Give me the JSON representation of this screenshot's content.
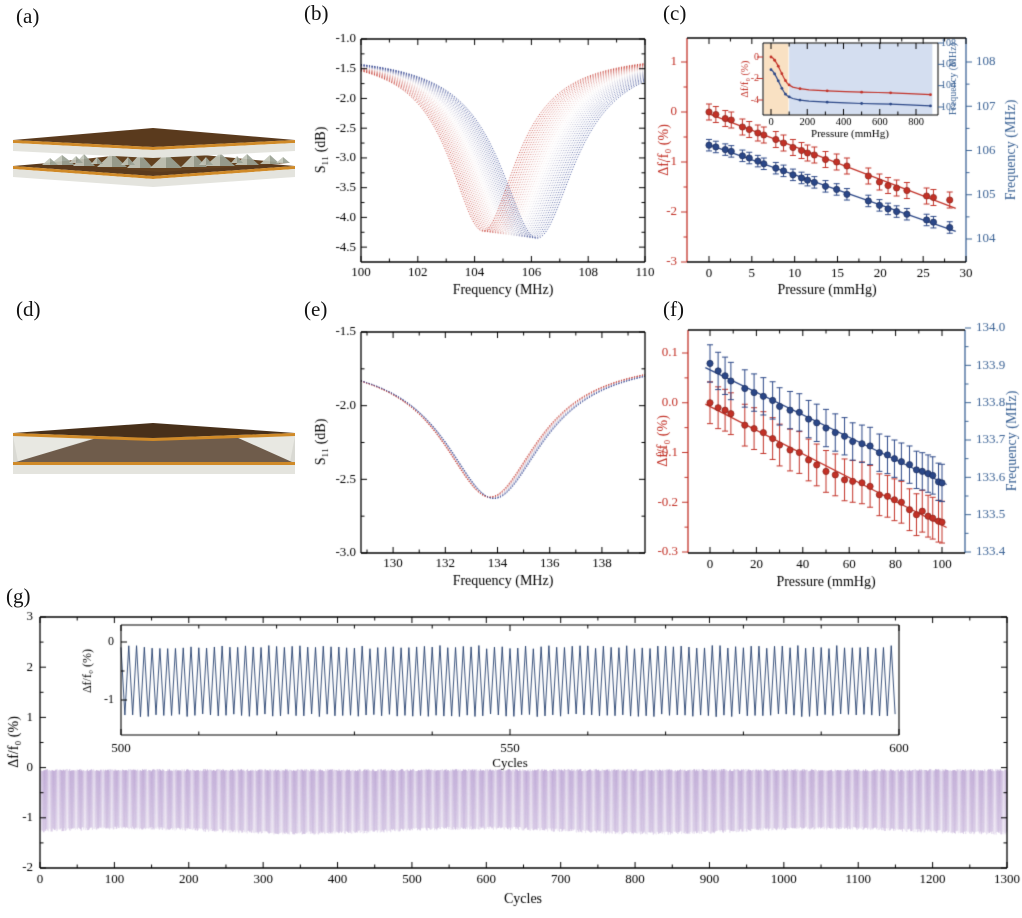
{
  "panels": {
    "a": {
      "label": "(a)",
      "description": "Sensor schematic with micro-pyramid dielectric layer between two electrode plates"
    },
    "b": {
      "label": "(b)"
    },
    "c": {
      "label": "(c)"
    },
    "d": {
      "label": "(d)",
      "description": "Sensor schematic with solid flat dielectric layer"
    },
    "e": {
      "label": "(e)"
    },
    "f": {
      "label": "(f)"
    },
    "g": {
      "label": "(g)"
    }
  },
  "colors": {
    "red": "#c23127",
    "red_dark": "#8f241c",
    "blue": "#2b4787",
    "blue_dark": "#1c2f60",
    "axis_blue": "#3d6496",
    "purple_wave": "#b49ccb",
    "inset_line": "#25406e",
    "shade_orange": "#f7d9b4",
    "shade_blue": "#c9d6ec",
    "black": "#000000"
  },
  "schematic": {
    "electrode_brown": "#5a3a1d",
    "electrode_brown_dark": "#48301a",
    "electrode_orange": "#d08a28",
    "substrate_gray": "#e4e4de",
    "dielectric_brown": "#63411f",
    "pyramid_light": "#c2c7ba",
    "pyramid_dark": "#9aa294",
    "body_gray": "#d9d9d3",
    "body_light": "#eaeae4",
    "cavity_brown": "#6f5c4b"
  },
  "chart_data": [
    {
      "panel": "b",
      "type": "line",
      "xlabel": "Frequency (MHz)",
      "ylabel": "S₁₁ (dB)",
      "xlim": [
        100,
        110
      ],
      "ylim": [
        -4.75,
        -1.0
      ],
      "xticks": {
        "values": [
          100,
          102,
          104,
          106,
          108,
          110
        ],
        "labels": [
          "100",
          "102",
          "104",
          "106",
          "108",
          "110"
        ],
        "minors": [
          101,
          103,
          105,
          107,
          109
        ]
      },
      "yticks": {
        "values": [
          -1.0,
          -1.5,
          -2.0,
          -2.5,
          -3.0,
          -3.5,
          -4.0,
          -4.5
        ],
        "labels": [
          "-1.0",
          "-1.5",
          "-2.0",
          "-2.5",
          "-3.0",
          "-3.5",
          "-4.0",
          "-4.5"
        ],
        "minors": [
          -1.25,
          -1.75,
          -2.25,
          -2.75,
          -3.25,
          -3.75,
          -4.25
        ]
      },
      "resonance_family": {
        "count": 26,
        "center_range": [
          104.3,
          106.2
        ],
        "depth_range": [
          3.0,
          3.12
        ],
        "width_range": [
          1.45,
          1.62
        ],
        "baseline": -1.23,
        "color_low": "#c23127",
        "color_mid": "#f2eaea",
        "color_high": "#2c3f8e"
      },
      "annotation": "S11 dip shifts from ~106.2 MHz (blue, 0 mmHg) to ~104.3 MHz (red, 28 mmHg); minimum ~ -4.3 dB"
    },
    {
      "panel": "c",
      "type": "scatter-errorbar",
      "xlabel": "Pressure (mmHg)",
      "ylabel_left": "Δf/f₀ (%)",
      "ylabel_right": "Frequency (MHz)",
      "xlim": [
        -2.6,
        30
      ],
      "xticks": {
        "values": [
          0,
          5,
          10,
          15,
          20,
          25,
          30
        ],
        "labels": [
          "0",
          "5",
          "10",
          "15",
          "20",
          "25",
          "30"
        ],
        "minors": [
          2.5,
          7.5,
          12.5,
          17.5,
          22.5,
          27.5
        ]
      },
      "yticks_left": {
        "values": [
          1,
          0,
          -1,
          -2,
          -3
        ],
        "labels": [
          "1",
          "0",
          "-1",
          "-2",
          "-3"
        ],
        "minors": [
          0.5,
          -0.5,
          -1.5,
          -2.5
        ]
      },
      "yticks_right": {
        "values": [
          108,
          107,
          106,
          105,
          104
        ],
        "labels": [
          "108",
          "107",
          "106",
          "105",
          "104"
        ],
        "minors": [
          107.5,
          106.5,
          105.5,
          104.5
        ]
      },
      "series": {
        "pressure": [
          0,
          0.8,
          1.9,
          2.6,
          3.9,
          4.7,
          5.7,
          6.4,
          7.8,
          8.7,
          9.8,
          10.8,
          11.5,
          12.3,
          13.6,
          14.9,
          16.1,
          18.6,
          19.9,
          20.9,
          21.9,
          23.1,
          25.4,
          26.2,
          28.1
        ],
        "dff0_percent": [
          0.0,
          -0.05,
          -0.13,
          -0.16,
          -0.3,
          -0.35,
          -0.42,
          -0.46,
          -0.55,
          -0.62,
          -0.71,
          -0.77,
          -0.82,
          -0.86,
          -0.95,
          -1.0,
          -1.08,
          -1.28,
          -1.4,
          -1.47,
          -1.52,
          -1.57,
          -1.68,
          -1.71,
          -1.76
        ],
        "dff0_err": 0.16,
        "frequency_mhz": [
          106.12,
          106.08,
          106.02,
          105.98,
          105.88,
          105.83,
          105.76,
          105.7,
          105.6,
          105.54,
          105.45,
          105.38,
          105.33,
          105.28,
          105.19,
          105.12,
          105.01,
          104.86,
          104.76,
          104.68,
          104.62,
          104.56,
          104.43,
          104.38,
          104.26
        ],
        "frequency_err": 0.13
      },
      "inset": {
        "xlabel": "Pressure (mmHg)",
        "ylabel_left": "Δf/f₀ (%)",
        "ylabel_right": "Frequency (MHz)",
        "xticks": {
          "values": [
            0,
            200,
            400,
            600,
            800
          ],
          "labels": [
            "0",
            "200",
            "400",
            "600",
            "800"
          ],
          "minors": [
            100,
            300,
            500,
            700
          ]
        },
        "yticks_left": {
          "values": [
            0,
            -2,
            -4
          ],
          "labels": [
            "0",
            "-2",
            "-4"
          ]
        },
        "yticks_right": {
          "values": [
            108,
            106,
            104,
            102
          ],
          "labels": [
            "108",
            "106",
            "104",
            "102"
          ]
        },
        "shade_orange_x": [
          0,
          100
        ],
        "shade_blue_x": [
          100,
          890
        ],
        "pressure": [
          0,
          10,
          20,
          30,
          40,
          50,
          60,
          70,
          80,
          90,
          100,
          120,
          160,
          210,
          310,
          410,
          500,
          590,
          660,
          760,
          880
        ],
        "dff0_percent": [
          0,
          -0.1,
          -0.3,
          -0.55,
          -0.85,
          -1.2,
          -1.55,
          -1.9,
          -2.2,
          -2.45,
          -2.6,
          -2.8,
          -2.95,
          -3.05,
          -3.15,
          -3.22,
          -3.27,
          -3.3,
          -3.33,
          -3.4,
          -3.5
        ],
        "frequency_mhz": [
          105.5,
          105.35,
          105.1,
          104.8,
          104.45,
          104.1,
          103.75,
          103.45,
          103.2,
          103.05,
          102.95,
          102.8,
          102.65,
          102.55,
          102.45,
          102.38,
          102.33,
          102.3,
          102.27,
          102.2,
          102.1
        ]
      }
    },
    {
      "panel": "e",
      "type": "line",
      "xlabel": "Frequency (MHz)",
      "ylabel": "S₁₁ (dB)",
      "xlim": [
        128.77,
        139.65
      ],
      "ylim": [
        -3.0,
        -1.5
      ],
      "xticks": {
        "values": [
          130,
          132,
          134,
          136,
          138
        ],
        "labels": [
          "130",
          "132",
          "134",
          "136",
          "138"
        ],
        "minors": [
          129,
          131,
          133,
          135,
          137,
          139
        ]
      },
      "yticks": {
        "values": [
          -1.5,
          -2.0,
          -2.5,
          -3.0
        ],
        "labels": [
          "-1.5",
          "-2.0",
          "-2.5",
          "-3.0"
        ],
        "minors": [
          -1.75,
          -2.25,
          -2.75
        ]
      },
      "resonance_family": {
        "count": 12,
        "center_range": [
          133.7,
          133.88
        ],
        "depth_range": [
          0.95,
          0.96
        ],
        "width_range": [
          2.25,
          2.3
        ],
        "baseline": -1.67,
        "color_low": "#c23127",
        "color_mid": "#e8e4ee",
        "color_high": "#2c3f8e"
      },
      "annotation": "Small dip shift around 133.8 MHz; minimum ~ -2.62 dB"
    },
    {
      "panel": "f",
      "type": "scatter-errorbar",
      "xlabel": "Pressure (mmHg)",
      "ylabel_left": "Δf/f₀ (%)",
      "ylabel_right": "Frequency (MHz)",
      "xlim": [
        -9.5,
        110
      ],
      "xticks": {
        "values": [
          0,
          20,
          40,
          60,
          80,
          100
        ],
        "labels": [
          "0",
          "20",
          "40",
          "60",
          "80",
          "100"
        ],
        "minors": [
          10,
          30,
          50,
          70,
          90,
          110
        ]
      },
      "yticks_left": {
        "values": [
          0.1,
          0.0,
          -0.1,
          -0.2,
          -0.3
        ],
        "labels": [
          "0.1",
          "0.0",
          "-0.1",
          "-0.2",
          "-0.3"
        ],
        "minors": [
          0.05,
          -0.05,
          -0.15,
          -0.25
        ]
      },
      "yticks_right": {
        "values": [
          134.0,
          133.9,
          133.8,
          133.7,
          133.6,
          133.5,
          133.4
        ],
        "labels": [
          "134.0",
          "133.9",
          "133.8",
          "133.7",
          "133.6",
          "133.5",
          "133.4"
        ],
        "minors": [
          133.95,
          133.85,
          133.75,
          133.65,
          133.55,
          133.45
        ]
      },
      "series": {
        "pressure": [
          0,
          3.5,
          6.5,
          9,
          15,
          19,
          23,
          27,
          30,
          34.5,
          38.5,
          42.5,
          46,
          50,
          54,
          58,
          61.5,
          65.5,
          69,
          73,
          76.5,
          79.5,
          82.5,
          86,
          89,
          91.5,
          94,
          96,
          98.5,
          100
        ],
        "dff0_percent": [
          0.0,
          -0.01,
          -0.015,
          -0.022,
          -0.045,
          -0.052,
          -0.06,
          -0.072,
          -0.085,
          -0.095,
          -0.1,
          -0.115,
          -0.125,
          -0.138,
          -0.145,
          -0.155,
          -0.158,
          -0.161,
          -0.168,
          -0.185,
          -0.188,
          -0.195,
          -0.2,
          -0.215,
          -0.225,
          -0.218,
          -0.228,
          -0.232,
          -0.238,
          -0.24
        ],
        "dff0_err": 0.042,
        "frequency_mhz": [
          133.905,
          133.885,
          133.872,
          133.858,
          133.838,
          133.827,
          133.817,
          133.806,
          133.79,
          133.78,
          133.774,
          133.756,
          133.746,
          133.732,
          133.72,
          133.71,
          133.696,
          133.69,
          133.684,
          133.666,
          133.66,
          133.65,
          133.642,
          133.634,
          133.62,
          133.616,
          133.61,
          133.605,
          133.588,
          133.585
        ],
        "frequency_err": 0.05
      }
    },
    {
      "panel": "g",
      "type": "line",
      "xlabel": "Cycles",
      "ylabel": "Δf/f₀ (%)",
      "xlim": [
        0,
        1300
      ],
      "ylim": [
        -2,
        3
      ],
      "xticks": {
        "values": [
          0,
          100,
          200,
          300,
          400,
          500,
          600,
          700,
          800,
          900,
          1000,
          1100,
          1200,
          1300
        ],
        "labels": [
          "0",
          "100",
          "200",
          "300",
          "400",
          "500",
          "600",
          "700",
          "800",
          "900",
          "1000",
          "1100",
          "1200",
          "1300"
        ],
        "minors": [
          50,
          150,
          250,
          350,
          450,
          550,
          650,
          750,
          850,
          950,
          1050,
          1150,
          1250
        ]
      },
      "yticks": {
        "values": [
          3,
          2,
          1,
          0,
          -1,
          -2
        ],
        "labels": [
          "3",
          "2",
          "1",
          "0",
          "-1",
          "-2"
        ],
        "minors": [
          2.5,
          1.5,
          0.5,
          -0.5,
          -1.5
        ]
      },
      "wave": {
        "cycle_start": 0,
        "cycle_end": 1300,
        "peak": -0.03,
        "trough": -1.22,
        "color": "#b49ccb"
      },
      "inset": {
        "xlabel": "Cycles",
        "ylabel": "Δf/f₀ (%)",
        "xlim": [
          500,
          600
        ],
        "xticks": {
          "values": [
            500,
            550,
            600
          ],
          "labels": [
            "500",
            "550",
            "600"
          ],
          "minors": [
            510,
            520,
            530,
            540,
            560,
            570,
            580,
            590
          ]
        },
        "yticks": {
          "values": [
            0,
            -1
          ],
          "labels": [
            "0",
            "-1"
          ]
        },
        "wave": {
          "peak": -0.06,
          "trough": -1.24,
          "color": "#25406e"
        }
      },
      "annotation": "Cyclic stability over 1300 cycles; oscillation between ~0 and ~-1.25 %"
    }
  ]
}
